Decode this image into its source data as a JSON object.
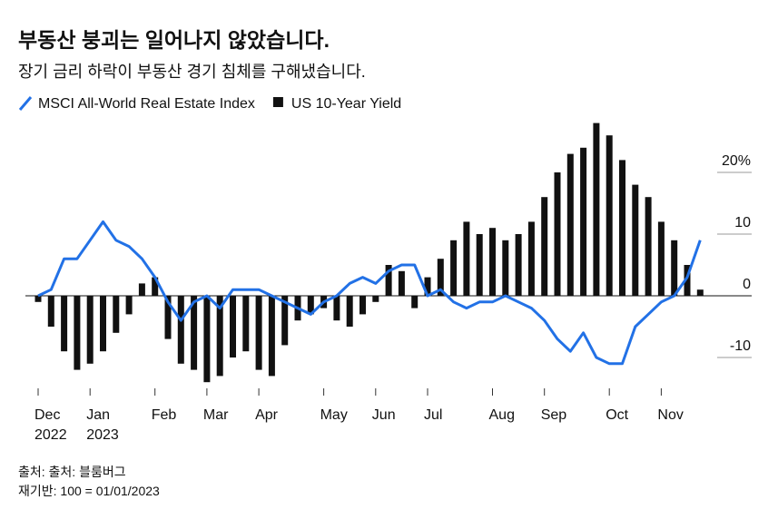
{
  "chart_data": {
    "type": "bar",
    "title": "부동산 붕괴는 일어나지 않았습니다.",
    "subtitle": "장기 금리 하락이 부동산 경기 침체를 구해냈습니다.",
    "source": "출처: 출처: 블룸버그",
    "note": "재기반: 100 = 01/01/2023",
    "categories": [
      "Dec 2022",
      null,
      null,
      null,
      "Jan 2023",
      null,
      null,
      null,
      null,
      "Feb",
      null,
      null,
      null,
      "Mar",
      null,
      null,
      null,
      "Apr",
      null,
      null,
      null,
      null,
      "May",
      null,
      null,
      null,
      "Jun",
      null,
      null,
      null,
      "Jul",
      null,
      null,
      null,
      null,
      "Aug",
      null,
      null,
      null,
      "Sep",
      null,
      null,
      null,
      null,
      "Oct",
      null,
      null,
      null,
      "Nov",
      null,
      null,
      null
    ],
    "series": [
      {
        "name": "MSCI All-World Real Estate Index",
        "type": "line",
        "color": "#2271e6",
        "values": [
          0,
          1,
          6,
          6,
          9,
          12,
          9,
          8,
          6,
          3,
          -1,
          -4,
          -1,
          0,
          -2,
          1,
          1,
          1,
          0,
          -1,
          -2,
          -3,
          -1,
          0,
          2,
          3,
          2,
          4,
          5,
          5,
          0,
          1,
          -1,
          -2,
          -1,
          -1,
          0,
          -1,
          -2,
          -4,
          -7,
          -9,
          -6,
          -10,
          -11,
          -11,
          -5,
          -3,
          -1,
          0,
          3,
          9
        ]
      },
      {
        "name": "US 10-Year Yield",
        "type": "bar",
        "color": "#111111",
        "values": [
          -1,
          -5,
          -9,
          -12,
          -11,
          -9,
          -6,
          -3,
          2,
          3,
          -7,
          -11,
          -12,
          -14,
          -13,
          -10,
          -9,
          -12,
          -13,
          -8,
          -4,
          -3,
          -2,
          -4,
          -5,
          -3,
          -1,
          5,
          4,
          -2,
          3,
          6,
          9,
          12,
          10,
          11,
          9,
          10,
          12,
          16,
          20,
          23,
          24,
          28,
          26,
          22,
          18,
          16,
          12,
          9,
          5,
          1
        ]
      }
    ],
    "ylim": [
      -15,
      30
    ],
    "yticks": [
      {
        "value": -10,
        "label": "-10"
      },
      0,
      10,
      {
        "value": 20,
        "label": "20%"
      }
    ],
    "grid": true
  }
}
